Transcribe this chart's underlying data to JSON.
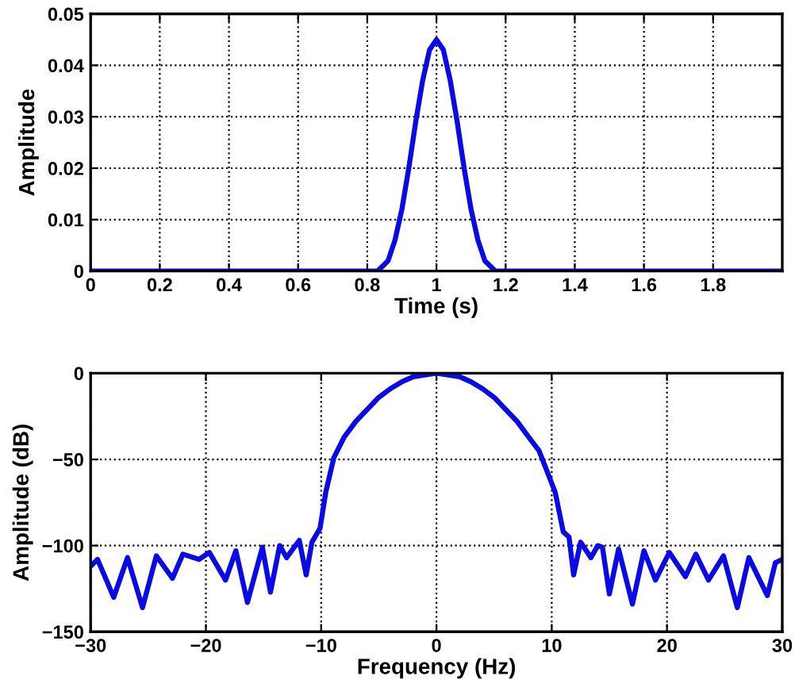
{
  "chart_data": [
    {
      "type": "line",
      "xlabel": "Time (s)",
      "ylabel": "Amplitude",
      "xlim": [
        0,
        2
      ],
      "ylim": [
        0,
        0.05
      ],
      "xticks": [
        0,
        0.2,
        0.4,
        0.6,
        0.8,
        1,
        1.2,
        1.4,
        1.6,
        1.8
      ],
      "yticks": [
        0,
        0.01,
        0.02,
        0.03,
        0.04,
        0.05
      ],
      "grid": true,
      "x": [
        0,
        0.83,
        0.86,
        0.88,
        0.9,
        0.92,
        0.94,
        0.96,
        0.98,
        1,
        1.02,
        1.04,
        1.06,
        1.08,
        1.1,
        1.12,
        1.14,
        1.17,
        2
      ],
      "series": [
        {
          "color": "#0a0ae6",
          "values": [
            0,
            0,
            0.002,
            0.006,
            0.012,
            0.02,
            0.029,
            0.037,
            0.043,
            0.045,
            0.043,
            0.037,
            0.029,
            0.02,
            0.012,
            0.006,
            0.002,
            0,
            0
          ]
        }
      ]
    },
    {
      "type": "line",
      "xlabel": "Frequency (Hz)",
      "ylabel": "Amplitude (dB)",
      "xlim": [
        -30,
        30
      ],
      "ylim": [
        -150,
        0
      ],
      "xticks": [
        {
          "value": -30,
          "label": "−30"
        },
        {
          "value": -20,
          "label": "−20"
        },
        {
          "value": -10,
          "label": "−10"
        },
        0,
        10,
        20,
        30
      ],
      "yticks": [
        {
          "value": -150,
          "label": "−150"
        },
        {
          "value": -100,
          "label": "−100"
        },
        {
          "value": -50,
          "label": "−50"
        },
        0
      ],
      "grid": true,
      "x": [
        -30.0,
        -29.4,
        -28.0,
        -26.8,
        -25.5,
        -24.3,
        -22.9,
        -22.0,
        -20.6,
        -19.7,
        -18.3,
        -17.4,
        -16.4,
        -15.1,
        -14.4,
        -13.6,
        -13.0,
        -11.9,
        -11.3,
        -10.8,
        -10.1,
        -9.6,
        -8.9,
        -8,
        -7,
        -6,
        -5,
        -4,
        -3,
        -2,
        -1,
        0,
        1,
        2,
        3,
        4,
        5,
        6,
        7,
        8,
        8.9,
        10.3,
        11.0,
        11.5,
        11.9,
        12.5,
        13.4,
        14.0,
        14.4,
        15.0,
        15.8,
        17.0,
        18.0,
        19.0,
        20.2,
        21.6,
        22.5,
        23.6,
        24.9,
        26.1,
        27.1,
        28.7,
        29.4,
        30.0
      ],
      "series": [
        {
          "color": "#0a0ae6",
          "values": [
            -112,
            -108,
            -130,
            -107,
            -136,
            -106,
            -119,
            -105,
            -108,
            -104,
            -120,
            -103,
            -133,
            -101,
            -127,
            -100,
            -107,
            -97,
            -117,
            -98,
            -90,
            -69,
            -49,
            -37,
            -28,
            -21,
            -14,
            -9,
            -5,
            -2,
            -1,
            0,
            -1,
            -2,
            -5,
            -9,
            -14,
            -21,
            -28,
            -37,
            -45,
            -69,
            -92,
            -95,
            -117,
            -98,
            -107,
            -100,
            -101,
            -128,
            -102,
            -134,
            -103,
            -120,
            -104,
            -118,
            -105,
            -120,
            -106,
            -136,
            -107,
            -129,
            -110,
            -108
          ]
        }
      ]
    }
  ]
}
